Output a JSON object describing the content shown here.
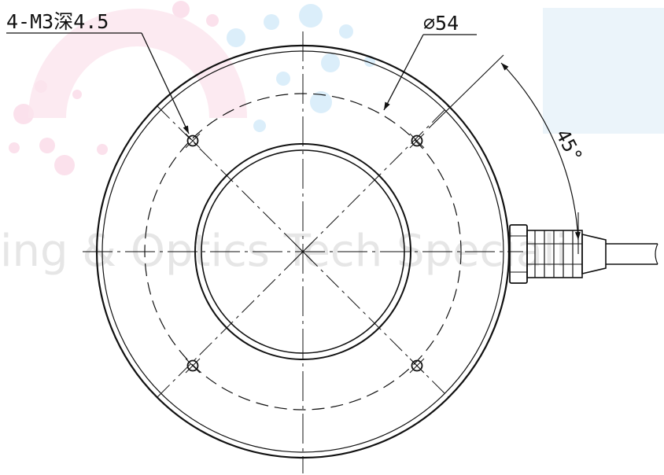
{
  "drawing": {
    "hole_callout": "4-M3深4.5",
    "diameter_callout": "⌀54",
    "angle_callout": "45°"
  },
  "watermark": {
    "text": "ing & Optics Tech Speciali",
    "colors": {
      "blue": "#dbeefa",
      "pink": "#fbe1ec",
      "text": "#e6e6e6"
    }
  },
  "colors": {
    "ink": "#111111",
    "background": "#ffffff"
  }
}
